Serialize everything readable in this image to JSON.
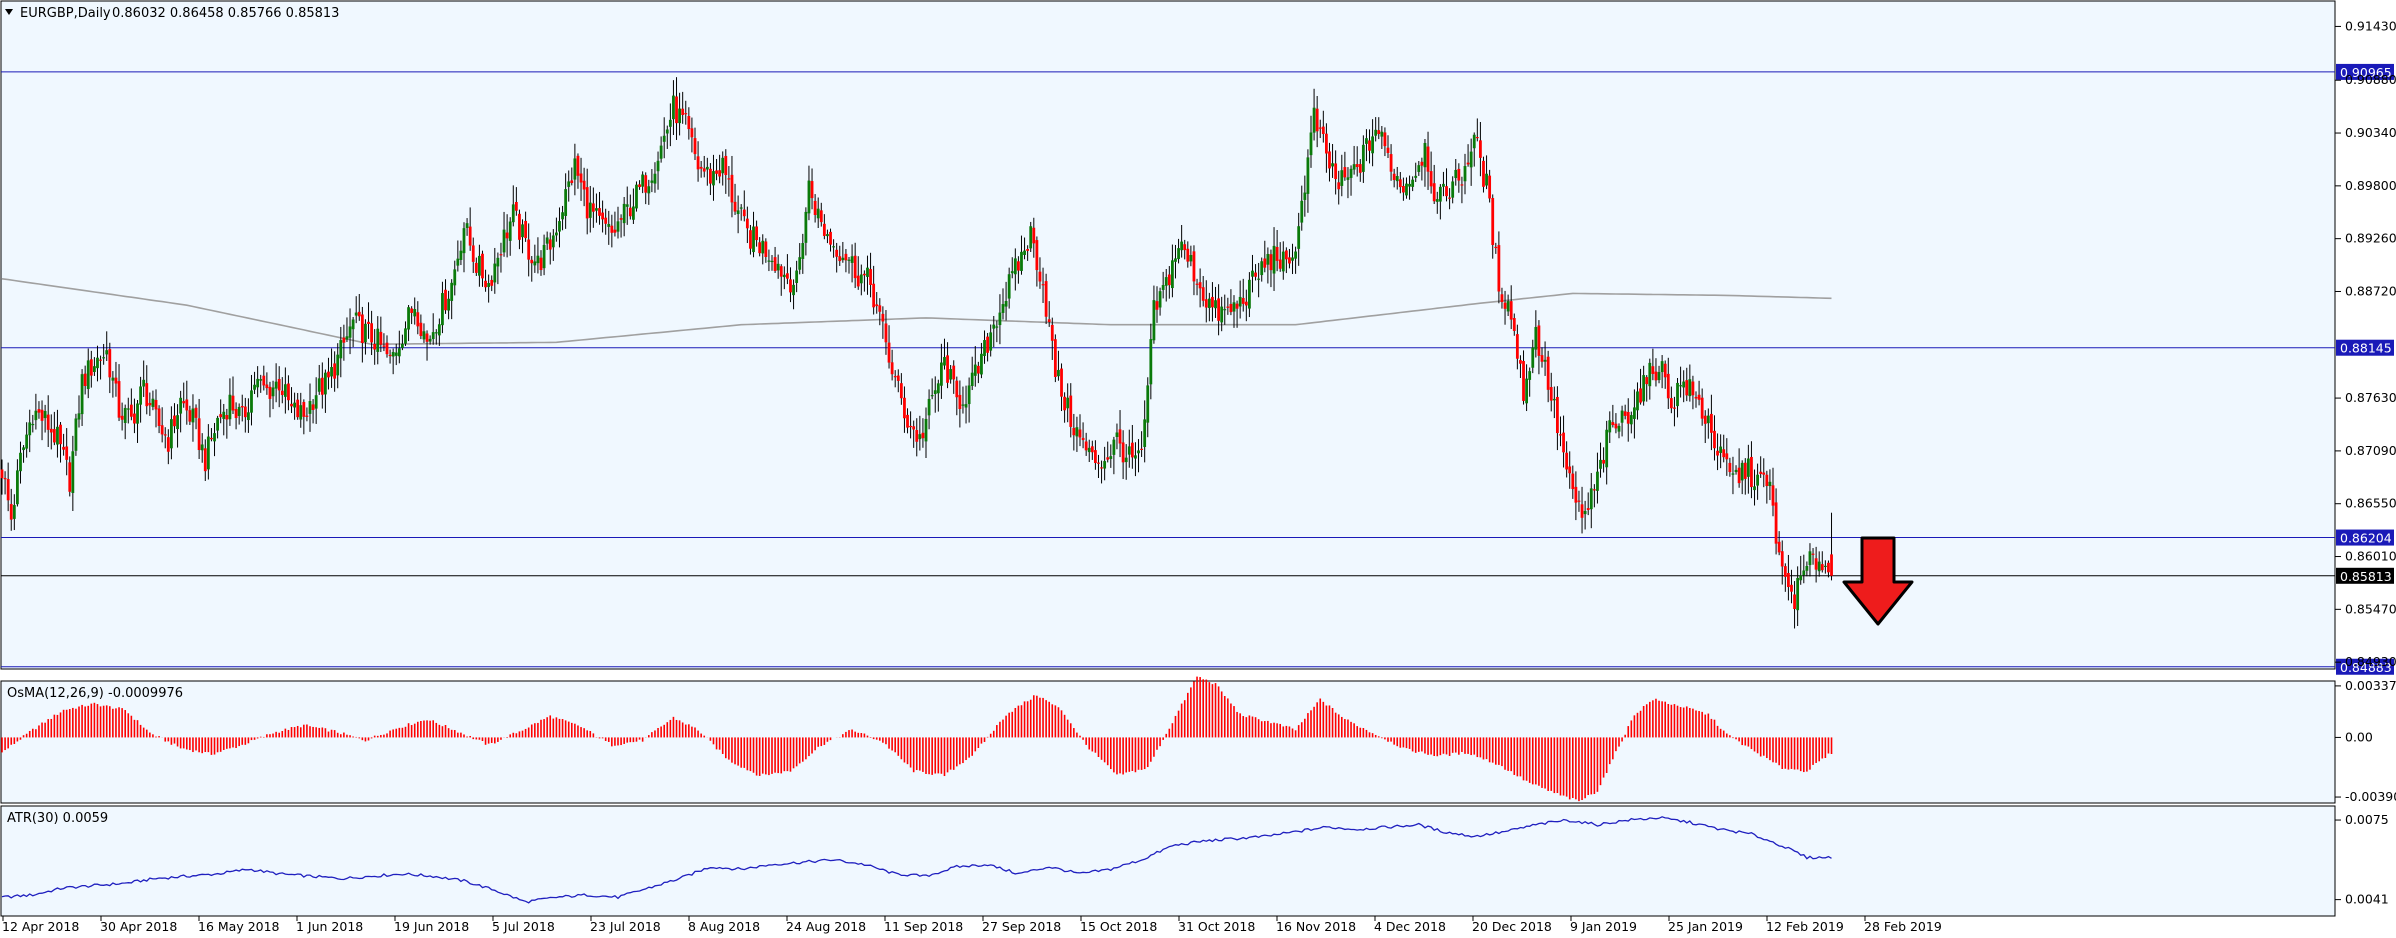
{
  "chart_data": [
    {
      "type": "candlestick",
      "panel": "main",
      "title": "EURGBP,Daily",
      "ohlc_text": "0.86032 0.86458 0.85766 0.85813",
      "colors": {
        "bull": "#0a7a0a",
        "bear": "#ff0000",
        "wick": "#000000",
        "ma": "#a0a0a0",
        "level": "#1a1ab8",
        "background": "#f0f8ff"
      },
      "y_ticks": [
        "0.91430",
        "0.90880",
        "0.90340",
        "0.89800",
        "0.89260",
        "0.88720",
        "0.87630",
        "0.87090",
        "0.86550",
        "0.86010",
        "0.85470",
        "0.84930"
      ],
      "ylim": [
        0.8486,
        0.9169
      ],
      "levels": [
        {
          "value": 0.90965,
          "label": "0.90965",
          "style": "blue-tag"
        },
        {
          "value": 0.88145,
          "label": "0.88145",
          "style": "blue-tag"
        },
        {
          "value": 0.86204,
          "label": "0.86204",
          "style": "blue-tag"
        },
        {
          "value": 0.85813,
          "label": "0.85813",
          "style": "black-tag"
        },
        {
          "value": 0.84883,
          "label": "0.84883",
          "style": "blue-tag"
        }
      ],
      "x_labels": [
        "12 Apr 2018",
        "30 Apr 2018",
        "16 May 2018",
        "1 Jun 2018",
        "19 Jun 2018",
        "5 Jul 2018",
        "23 Jul 2018",
        "8 Aug 2018",
        "24 Aug 2018",
        "11 Sep 2018",
        "27 Sep 2018",
        "15 Oct 2018",
        "31 Oct 2018",
        "16 Nov 2018",
        "4 Dec 2018",
        "20 Dec 2018",
        "9 Jan 2019",
        "25 Jan 2019",
        "12 Feb 2019",
        "28 Feb 2019"
      ],
      "close_path": [
        [
          0,
          0.869
        ],
        [
          3,
          0.864
        ],
        [
          6,
          0.87
        ],
        [
          10,
          0.875
        ],
        [
          14,
          0.874
        ],
        [
          18,
          0.872
        ],
        [
          22,
          0.868
        ],
        [
          26,
          0.878
        ],
        [
          30,
          0.88
        ],
        [
          34,
          0.881
        ],
        [
          38,
          0.875
        ],
        [
          42,
          0.874
        ],
        [
          46,
          0.8775
        ],
        [
          50,
          0.874
        ],
        [
          54,
          0.872
        ],
        [
          58,
          0.876
        ],
        [
          62,
          0.874
        ],
        [
          66,
          0.87
        ],
        [
          70,
          0.874
        ],
        [
          74,
          0.876
        ],
        [
          78,
          0.874
        ],
        [
          82,
          0.878
        ],
        [
          86,
          0.877
        ],
        [
          90,
          0.878
        ],
        [
          94,
          0.875
        ],
        [
          98,
          0.8745
        ],
        [
          102,
          0.877
        ],
        [
          106,
          0.878
        ],
        [
          110,
          0.881
        ],
        [
          114,
          0.884
        ],
        [
          118,
          0.883
        ],
        [
          122,
          0.882
        ],
        [
          126,
          0.88
        ],
        [
          130,
          0.883
        ],
        [
          134,
          0.886
        ],
        [
          138,
          0.882
        ],
        [
          142,
          0.885
        ],
        [
          146,
          0.888
        ],
        [
          150,
          0.894
        ],
        [
          154,
          0.89
        ],
        [
          158,
          0.888
        ],
        [
          162,
          0.892
        ],
        [
          166,
          0.895
        ],
        [
          170,
          0.892
        ],
        [
          174,
          0.89
        ],
        [
          178,
          0.892
        ],
        [
          182,
          0.896
        ],
        [
          186,
          0.9
        ],
        [
          190,
          0.896
        ],
        [
          194,
          0.894
        ],
        [
          198,
          0.893
        ],
        [
          202,
          0.895
        ],
        [
          206,
          0.897
        ],
        [
          210,
          0.899
        ],
        [
          214,
          0.902
        ],
        [
          218,
          0.906
        ],
        [
          222,
          0.904
        ],
        [
          226,
          0.9
        ],
        [
          230,
          0.899
        ],
        [
          234,
          0.9
        ],
        [
          238,
          0.896
        ],
        [
          242,
          0.893
        ],
        [
          246,
          0.892
        ],
        [
          250,
          0.891
        ],
        [
          254,
          0.889
        ],
        [
          258,
          0.888
        ],
        [
          262,
          0.898
        ],
        [
          266,
          0.894
        ],
        [
          270,
          0.892
        ],
        [
          274,
          0.891
        ],
        [
          278,
          0.889
        ],
        [
          282,
          0.888
        ],
        [
          286,
          0.883
        ],
        [
          290,
          0.878
        ],
        [
          294,
          0.874
        ],
        [
          298,
          0.872
        ],
        [
          302,
          0.876
        ],
        [
          306,
          0.88
        ],
        [
          310,
          0.876
        ],
        [
          314,
          0.877
        ],
        [
          318,
          0.88
        ],
        [
          322,
          0.884
        ],
        [
          326,
          0.887
        ],
        [
          330,
          0.89
        ],
        [
          334,
          0.893
        ],
        [
          338,
          0.888
        ],
        [
          342,
          0.879
        ],
        [
          346,
          0.875
        ],
        [
          350,
          0.872
        ],
        [
          354,
          0.87
        ],
        [
          358,
          0.87
        ],
        [
          362,
          0.872
        ],
        [
          366,
          0.87
        ],
        [
          370,
          0.87
        ],
        [
          374,
          0.885
        ],
        [
          378,
          0.888
        ],
        [
          382,
          0.892
        ],
        [
          386,
          0.89
        ],
        [
          390,
          0.887
        ],
        [
          394,
          0.885
        ],
        [
          398,
          0.885
        ],
        [
          402,
          0.886
        ],
        [
          406,
          0.888
        ],
        [
          410,
          0.89
        ],
        [
          414,
          0.891
        ],
        [
          418,
          0.889
        ],
        [
          422,
          0.896
        ],
        [
          426,
          0.905
        ],
        [
          430,
          0.901
        ],
        [
          434,
          0.898
        ],
        [
          438,
          0.899
        ],
        [
          442,
          0.901
        ],
        [
          446,
          0.904
        ],
        [
          450,
          0.901
        ],
        [
          454,
          0.898
        ],
        [
          458,
          0.899
        ],
        [
          462,
          0.902
        ],
        [
          466,
          0.896
        ],
        [
          470,
          0.898
        ],
        [
          474,
          0.899
        ],
        [
          478,
          0.903
        ],
        [
          482,
          0.898
        ],
        [
          486,
          0.888
        ],
        [
          490,
          0.885
        ],
        [
          494,
          0.877
        ],
        [
          498,
          0.883
        ],
        [
          502,
          0.878
        ],
        [
          506,
          0.872
        ],
        [
          510,
          0.866
        ],
        [
          514,
          0.864
        ],
        [
          518,
          0.868
        ],
        [
          522,
          0.873
        ],
        [
          526,
          0.874
        ],
        [
          530,
          0.876
        ],
        [
          534,
          0.878
        ],
        [
          538,
          0.88
        ],
        [
          542,
          0.876
        ],
        [
          546,
          0.878
        ],
        [
          550,
          0.876
        ],
        [
          554,
          0.874
        ],
        [
          558,
          0.87
        ],
        [
          562,
          0.868
        ],
        [
          566,
          0.869
        ],
        [
          570,
          0.868
        ],
        [
          574,
          0.867
        ],
        [
          578,
          0.858
        ],
        [
          582,
          0.856
        ],
        [
          586,
          0.859
        ],
        [
          590,
          0.86
        ],
        [
          594,
          0.8581
        ]
      ],
      "ma_path": [
        [
          0,
          0.8885
        ],
        [
          60,
          0.8858
        ],
        [
          120,
          0.8818
        ],
        [
          180,
          0.882
        ],
        [
          240,
          0.8838
        ],
        [
          300,
          0.8845
        ],
        [
          360,
          0.8838
        ],
        [
          420,
          0.8838
        ],
        [
          480,
          0.886
        ],
        [
          510,
          0.887
        ],
        [
          560,
          0.8868
        ],
        [
          594,
          0.8865
        ]
      ]
    },
    {
      "type": "histogram",
      "panel": "osma",
      "title": "OsMA(12,26,9) -0.0009976",
      "y_ticks": [
        "0.0033785",
        "0.00",
        "-0.0039095"
      ],
      "ylim": [
        -0.0043,
        0.0037
      ],
      "path": [
        [
          0,
          -0.001
        ],
        [
          10,
          0.0005
        ],
        [
          20,
          0.0018
        ],
        [
          30,
          0.0022
        ],
        [
          40,
          0.0018
        ],
        [
          48,
          0.0003
        ],
        [
          58,
          -0.0007
        ],
        [
          68,
          -0.0011
        ],
        [
          78,
          -0.0005
        ],
        [
          88,
          0.0003
        ],
        [
          98,
          0.0008
        ],
        [
          108,
          0.0004
        ],
        [
          118,
          -0.0002
        ],
        [
          128,
          0.0006
        ],
        [
          138,
          0.0012
        ],
        [
          148,
          0.0004
        ],
        [
          158,
          -0.0005
        ],
        [
          168,
          0.0004
        ],
        [
          178,
          0.0014
        ],
        [
          188,
          0.0007
        ],
        [
          198,
          -0.0005
        ],
        [
          208,
          -0.0002
        ],
        [
          218,
          0.0013
        ],
        [
          226,
          0.0005
        ],
        [
          236,
          -0.0015
        ],
        [
          246,
          -0.0025
        ],
        [
          256,
          -0.0022
        ],
        [
          266,
          -0.0005
        ],
        [
          276,
          0.0005
        ],
        [
          286,
          -0.0003
        ],
        [
          296,
          -0.0022
        ],
        [
          306,
          -0.0025
        ],
        [
          316,
          -0.001
        ],
        [
          326,
          0.0015
        ],
        [
          336,
          0.0028
        ],
        [
          344,
          0.0018
        ],
        [
          352,
          -0.0005
        ],
        [
          362,
          -0.0025
        ],
        [
          372,
          -0.002
        ],
        [
          380,
          0.001
        ],
        [
          388,
          0.004
        ],
        [
          394,
          0.0035
        ],
        [
          402,
          0.0015
        ],
        [
          412,
          0.001
        ],
        [
          420,
          0.0005
        ],
        [
          428,
          0.0025
        ],
        [
          436,
          0.0012
        ],
        [
          446,
          0.0002
        ],
        [
          456,
          -0.0008
        ],
        [
          466,
          -0.0012
        ],
        [
          476,
          -0.001
        ],
        [
          486,
          -0.0018
        ],
        [
          496,
          -0.003
        ],
        [
          506,
          -0.0038
        ],
        [
          512,
          -0.0042
        ],
        [
          518,
          -0.0035
        ],
        [
          524,
          -0.001
        ],
        [
          530,
          0.0015
        ],
        [
          536,
          0.0025
        ],
        [
          546,
          0.002
        ],
        [
          554,
          0.0015
        ],
        [
          560,
          0.0002
        ],
        [
          568,
          -0.0008
        ],
        [
          578,
          -0.002
        ],
        [
          586,
          -0.0022
        ],
        [
          594,
          -0.001
        ]
      ]
    },
    {
      "type": "line",
      "panel": "atr",
      "title": "ATR(30) 0.0059",
      "y_ticks": [
        "0.0075",
        "0.0041"
      ],
      "ylim": [
        0.0034,
        0.0081
      ],
      "path": [
        [
          0,
          0.0042
        ],
        [
          10,
          0.0043
        ],
        [
          20,
          0.0046
        ],
        [
          30,
          0.0047
        ],
        [
          40,
          0.0048
        ],
        [
          50,
          0.005
        ],
        [
          60,
          0.0051
        ],
        [
          70,
          0.0052
        ],
        [
          80,
          0.0054
        ],
        [
          90,
          0.0052
        ],
        [
          100,
          0.0051
        ],
        [
          110,
          0.005
        ],
        [
          120,
          0.0051
        ],
        [
          130,
          0.0052
        ],
        [
          140,
          0.0051
        ],
        [
          150,
          0.0049
        ],
        [
          160,
          0.0045
        ],
        [
          170,
          0.004
        ],
        [
          180,
          0.0042
        ],
        [
          190,
          0.0043
        ],
        [
          200,
          0.0042
        ],
        [
          210,
          0.0046
        ],
        [
          220,
          0.005
        ],
        [
          230,
          0.0055
        ],
        [
          240,
          0.0054
        ],
        [
          250,
          0.0056
        ],
        [
          260,
          0.0057
        ],
        [
          270,
          0.0058
        ],
        [
          280,
          0.0056
        ],
        [
          290,
          0.0052
        ],
        [
          300,
          0.0051
        ],
        [
          310,
          0.0055
        ],
        [
          320,
          0.0056
        ],
        [
          330,
          0.0052
        ],
        [
          340,
          0.0055
        ],
        [
          350,
          0.0052
        ],
        [
          360,
          0.0054
        ],
        [
          370,
          0.0058
        ],
        [
          380,
          0.0064
        ],
        [
          390,
          0.0066
        ],
        [
          400,
          0.0067
        ],
        [
          410,
          0.0068
        ],
        [
          420,
          0.007
        ],
        [
          430,
          0.0072
        ],
        [
          440,
          0.0071
        ],
        [
          450,
          0.0072
        ],
        [
          460,
          0.0073
        ],
        [
          468,
          0.007
        ],
        [
          478,
          0.0068
        ],
        [
          488,
          0.007
        ],
        [
          498,
          0.0073
        ],
        [
          508,
          0.0075
        ],
        [
          518,
          0.0073
        ],
        [
          528,
          0.0075
        ],
        [
          538,
          0.0076
        ],
        [
          548,
          0.0074
        ],
        [
          558,
          0.0071
        ],
        [
          568,
          0.0069
        ],
        [
          578,
          0.0064
        ],
        [
          586,
          0.0059
        ],
        [
          594,
          0.0059
        ]
      ]
    }
  ]
}
